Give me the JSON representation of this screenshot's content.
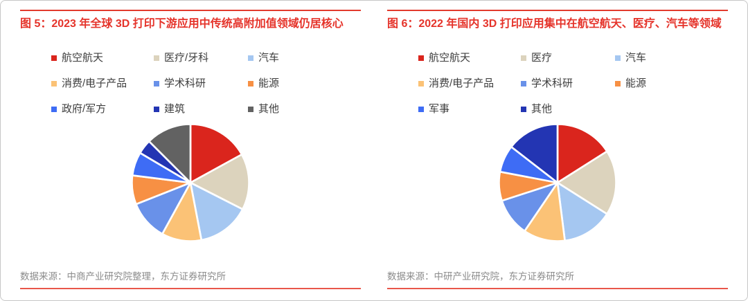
{
  "card": {
    "background": "#ffffff",
    "border_color": "#c6c6c6",
    "rule_color_top": "#e23a2c",
    "rule_color_bottom": "#e8564a",
    "title_color": "#e5332a",
    "legend_text_color": "#3d3d3d",
    "source_text_color": "#8b8b8b"
  },
  "chart_data": [
    {
      "type": "pie",
      "title": "图 5：2023 年全球 3D 打印下游应用中传统高附加值领域仍居核心",
      "source_note": "数据来源：中商产业研究院整理，东方证券研究所",
      "categories": [
        "航空航天",
        "医疗/牙科",
        "汽车",
        "消费/电子产品",
        "学术科研",
        "能源",
        "政府/军方",
        "建筑",
        "其他"
      ],
      "values": [
        17,
        15.5,
        14.5,
        11,
        11,
        8,
        6.5,
        4,
        12.5
      ],
      "colors": [
        "#da251d",
        "#dcd3bd",
        "#a5c7f1",
        "#fbc276",
        "#6991e9",
        "#f79044",
        "#3e6cf5",
        "#2335b3",
        "#626262"
      ],
      "value_unit": "percent (estimated from slice angles)",
      "start_angle_deg": 0,
      "direction": "clockwise",
      "legend_position": "top",
      "slice_gap": "white separators between slices"
    },
    {
      "type": "pie",
      "title": "图 6：2022 年国内 3D 打印应用集中在航空航天、医疗、汽车等领域",
      "source_note": "数据来源：中研产业研究院，东方证券研究所",
      "categories": [
        "航空航天",
        "医疗",
        "汽车",
        "消费/电子产品",
        "学术科研",
        "能源",
        "军事",
        "其他"
      ],
      "values": [
        16,
        18,
        14,
        11.5,
        10.5,
        8,
        7.5,
        14.5
      ],
      "colors": [
        "#da251d",
        "#dcd3bd",
        "#a5c7f1",
        "#fbc276",
        "#6991e9",
        "#f79044",
        "#3e6cf5",
        "#2335b3"
      ],
      "value_unit": "percent (estimated from slice angles)",
      "start_angle_deg": 0,
      "direction": "clockwise",
      "legend_position": "top",
      "slice_gap": "white separators between slices"
    }
  ]
}
